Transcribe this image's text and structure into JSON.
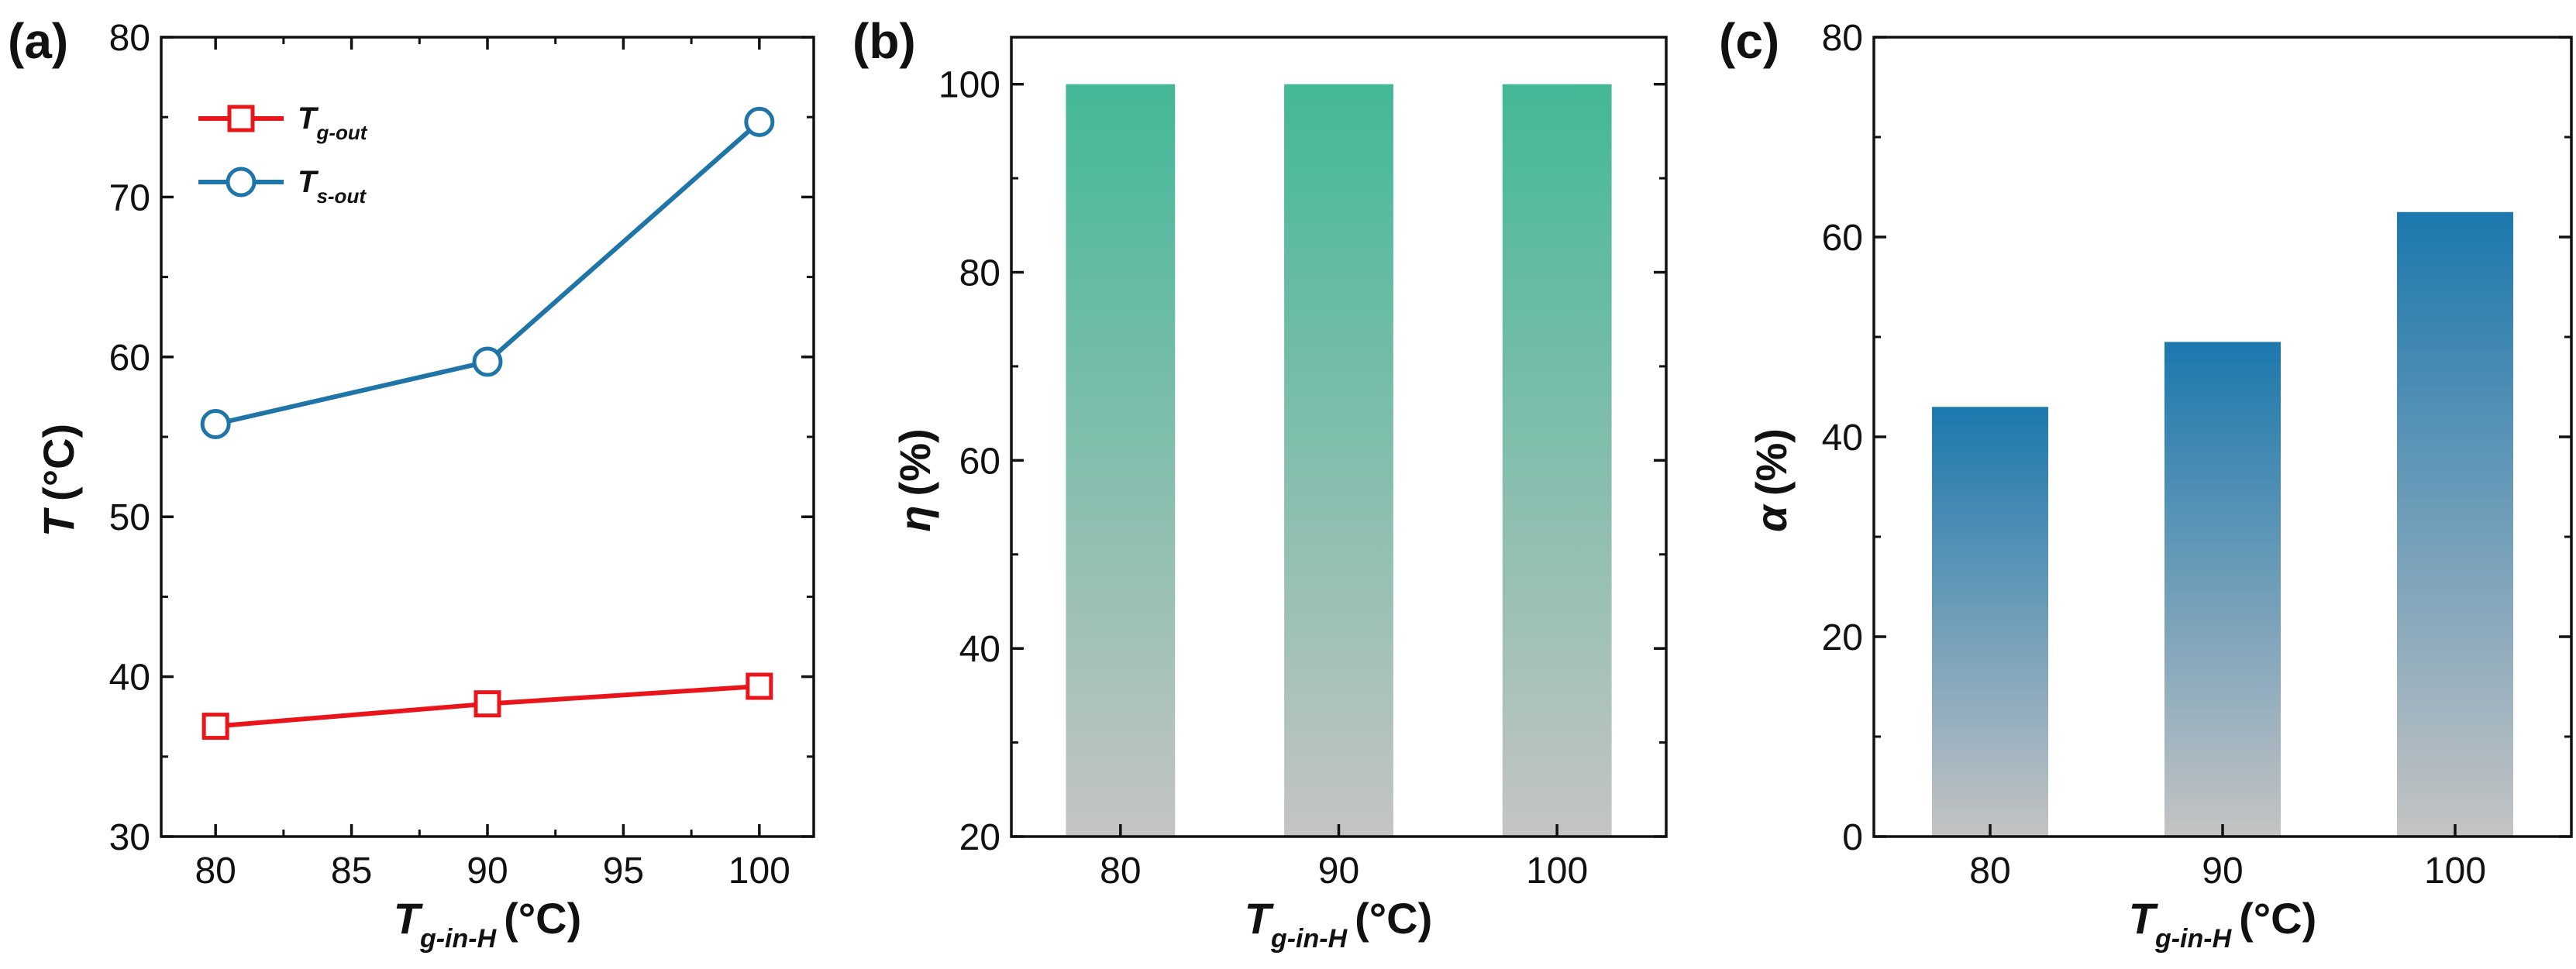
{
  "chart_data": [
    {
      "panel": "(a)",
      "type": "line",
      "x": [
        80,
        90,
        100
      ],
      "xlim": [
        78,
        102
      ],
      "xticks": [
        80,
        85,
        90,
        95,
        100
      ],
      "ylim": [
        30,
        80
      ],
      "yticks": [
        30,
        40,
        50,
        60,
        70,
        80
      ],
      "xlabel": {
        "main": "T",
        "sub": "g-in-H",
        "unit": "(°C)"
      },
      "ylabel": {
        "main": "T",
        "unit": "(°C)"
      },
      "legend_position": "top-left",
      "series": [
        {
          "name": "T",
          "sub": "g-out",
          "marker": "square",
          "color": "#e8161b",
          "values": [
            36.9,
            38.3,
            39.4
          ]
        },
        {
          "name": "T",
          "sub": "s-out",
          "marker": "circle",
          "color": "#1f74a8",
          "values": [
            55.8,
            59.7,
            74.7
          ]
        }
      ]
    },
    {
      "panel": "(b)",
      "type": "bar",
      "categories": [
        "80",
        "90",
        "100"
      ],
      "values": [
        100,
        100,
        100
      ],
      "ylim": [
        20,
        105
      ],
      "yticks": [
        20,
        40,
        60,
        80,
        100
      ],
      "xlabel": {
        "main": "T",
        "sub": "g-in-H",
        "unit": "(°C)"
      },
      "ylabel": {
        "main": "η",
        "unit": "(%)"
      },
      "gradient": {
        "top": "#43b897",
        "bottom": "#c4c4c4"
      }
    },
    {
      "panel": "(c)",
      "type": "bar",
      "categories": [
        "80",
        "90",
        "100"
      ],
      "values": [
        43,
        49.5,
        62.5
      ],
      "ylim": [
        0,
        80
      ],
      "yticks": [
        0,
        20,
        40,
        60,
        80
      ],
      "xlabel": {
        "main": "T",
        "sub": "g-in-H",
        "unit": "(°C)"
      },
      "ylabel": {
        "main": "α",
        "unit": "(%)"
      },
      "gradient": {
        "top": "#1c78ae",
        "bottom": "#c4c4c4"
      }
    }
  ]
}
